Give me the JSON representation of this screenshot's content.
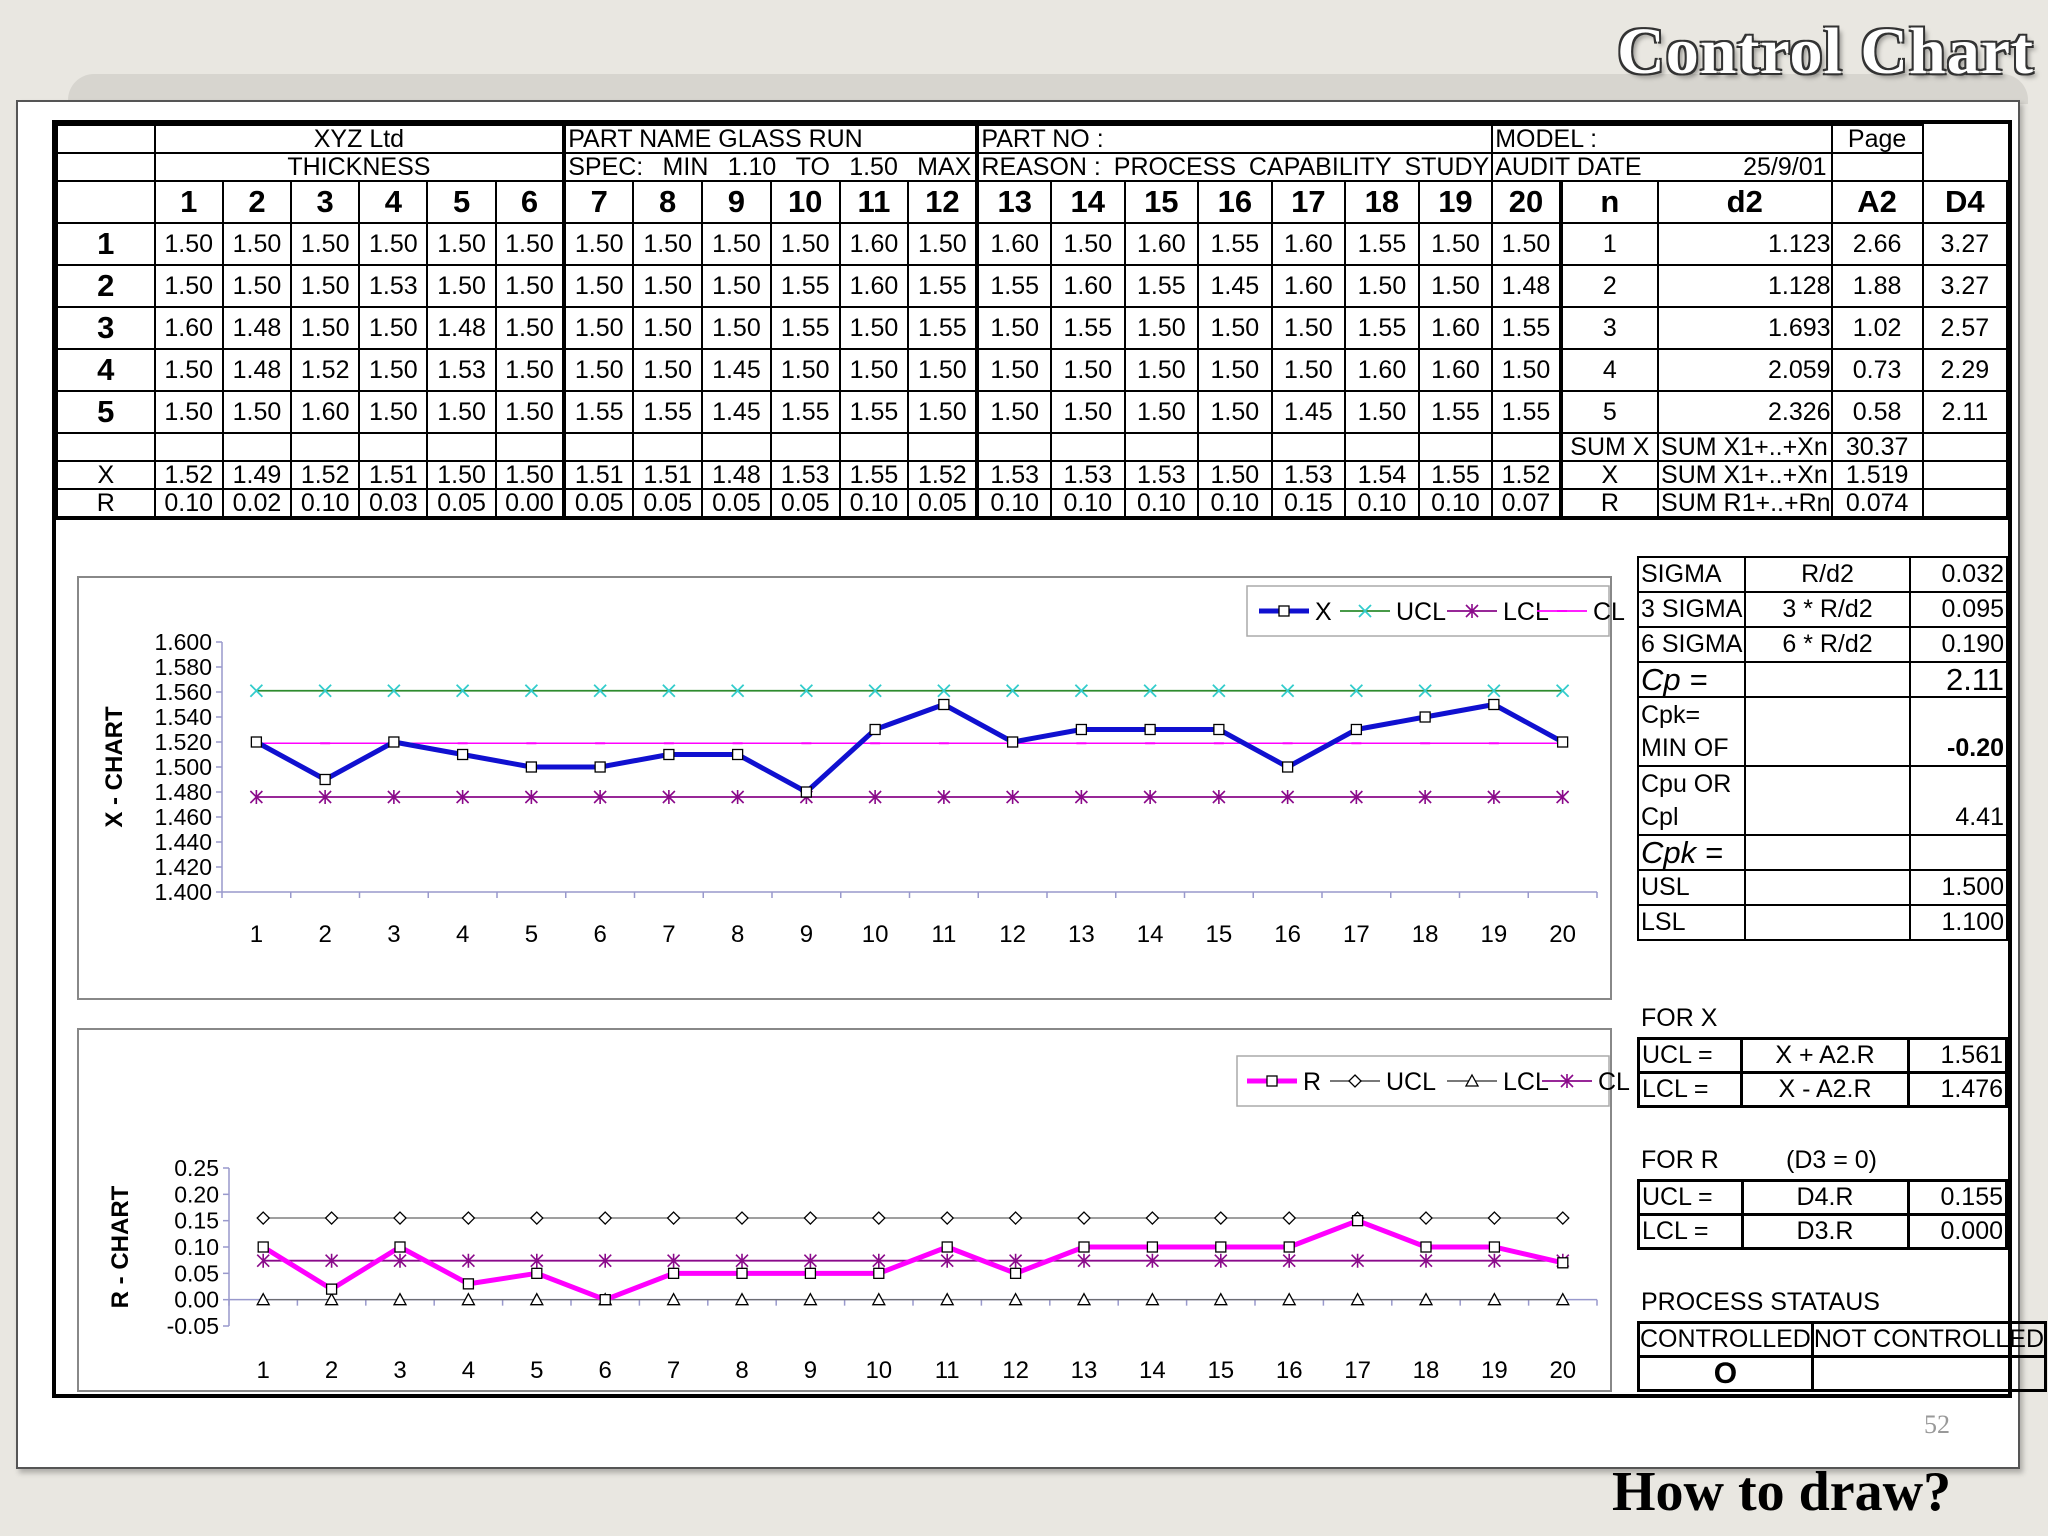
{
  "slide": {
    "title": "Control Chart",
    "footer": "How to draw?",
    "page_number": "52"
  },
  "header": {
    "company": "XYZ Ltd",
    "part_name_label": "PART NAME GLASS RUN",
    "part_no_label": "PART NO :",
    "model_label": "MODEL :",
    "page_label": "Page",
    "characteristic": "THICKNESS",
    "spec_label": "SPEC:",
    "min_label": "MIN",
    "min_value": "1.10",
    "to_label": "TO",
    "max_value": "1.50",
    "max_label": "MAX",
    "reason_label": "REASON :",
    "reason_words": [
      "PROCESS",
      "CAPABILITY",
      "STUDY"
    ],
    "audit_label": "AUDIT DATE",
    "audit_date": "25/9/01"
  },
  "table": {
    "columns": [
      "1",
      "2",
      "3",
      "4",
      "5",
      "6",
      "7",
      "8",
      "9",
      "10",
      "11",
      "12",
      "13",
      "14",
      "15",
      "16",
      "17",
      "18",
      "19",
      "20"
    ],
    "row_labels": [
      "1",
      "2",
      "3",
      "4",
      "5"
    ],
    "rows": [
      [
        "1.50",
        "1.50",
        "1.50",
        "1.50",
        "1.50",
        "1.50",
        "1.50",
        "1.50",
        "1.50",
        "1.50",
        "1.60",
        "1.50",
        "1.60",
        "1.50",
        "1.60",
        "1.55",
        "1.60",
        "1.55",
        "1.50",
        "1.50"
      ],
      [
        "1.50",
        "1.50",
        "1.50",
        "1.53",
        "1.50",
        "1.50",
        "1.50",
        "1.50",
        "1.50",
        "1.55",
        "1.60",
        "1.55",
        "1.55",
        "1.60",
        "1.55",
        "1.45",
        "1.60",
        "1.50",
        "1.50",
        "1.48"
      ],
      [
        "1.60",
        "1.48",
        "1.50",
        "1.50",
        "1.48",
        "1.50",
        "1.50",
        "1.50",
        "1.50",
        "1.55",
        "1.50",
        "1.55",
        "1.50",
        "1.55",
        "1.50",
        "1.50",
        "1.50",
        "1.55",
        "1.60",
        "1.55"
      ],
      [
        "1.50",
        "1.48",
        "1.52",
        "1.50",
        "1.53",
        "1.50",
        "1.50",
        "1.50",
        "1.45",
        "1.50",
        "1.50",
        "1.50",
        "1.50",
        "1.50",
        "1.50",
        "1.50",
        "1.50",
        "1.60",
        "1.60",
        "1.50"
      ],
      [
        "1.50",
        "1.50",
        "1.60",
        "1.50",
        "1.50",
        "1.50",
        "1.55",
        "1.55",
        "1.45",
        "1.55",
        "1.55",
        "1.50",
        "1.50",
        "1.50",
        "1.50",
        "1.50",
        "1.45",
        "1.50",
        "1.55",
        "1.55"
      ]
    ],
    "xbar_label": "X",
    "xbar": [
      "1.52",
      "1.49",
      "1.52",
      "1.51",
      "1.50",
      "1.50",
      "1.51",
      "1.51",
      "1.48",
      "1.53",
      "1.55",
      "1.52",
      "1.53",
      "1.53",
      "1.53",
      "1.50",
      "1.53",
      "1.54",
      "1.55",
      "1.52"
    ],
    "range_label": "R",
    "range": [
      "0.10",
      "0.02",
      "0.10",
      "0.03",
      "0.05",
      "0.00",
      "0.05",
      "0.05",
      "0.05",
      "0.05",
      "0.10",
      "0.05",
      "0.10",
      "0.10",
      "0.10",
      "0.10",
      "0.15",
      "0.10",
      "0.10",
      "0.07"
    ]
  },
  "constants": {
    "headers": [
      "n",
      "d2",
      "A2",
      "D4"
    ],
    "rows": [
      [
        "1",
        "1.123",
        "2.66",
        "3.27"
      ],
      [
        "2",
        "1.128",
        "1.88",
        "3.27"
      ],
      [
        "3",
        "1.693",
        "1.02",
        "2.57"
      ],
      [
        "4",
        "2.059",
        "0.73",
        "2.29"
      ],
      [
        "5",
        "2.326",
        "0.58",
        "2.11"
      ]
    ]
  },
  "calc": {
    "sum_x": {
      "label": "SUM X",
      "formula": "SUM X1+..+Xn",
      "value": "30.37"
    },
    "x_bar": {
      "label": "X",
      "formula": "SUM X1+..+Xn",
      "value": "1.519"
    },
    "r_bar": {
      "label": "R",
      "formula": "SUM R1+..+Rn",
      "value": "0.074"
    },
    "sigma": {
      "label": "SIGMA",
      "formula": "R/d2",
      "value": "0.032"
    },
    "sigma3": {
      "label": "3 SIGMA",
      "formula": "3 * R/d2",
      "value": "0.095"
    },
    "sigma6": {
      "label": "6 SIGMA",
      "formula": "6 * R/d2",
      "value": "0.190"
    },
    "cp": {
      "label": "Cp =",
      "value": "2.11"
    },
    "cpk_min": {
      "label_lines": [
        "Cpk=",
        "MIN OF"
      ],
      "value": "-0.20"
    },
    "cpu_cpl": {
      "label_lines": [
        "Cpu OR",
        "Cpl"
      ],
      "value": "4.41"
    },
    "cpk": {
      "label": "Cpk ="
    },
    "usl": {
      "label": "USL",
      "value": "1.500"
    },
    "lsl": {
      "label": "LSL",
      "value": "1.100"
    }
  },
  "limits_x": {
    "title": "FOR X",
    "ucl_label": "UCL =",
    "ucl_formula": "X + A2.R",
    "ucl_value": "1.561",
    "lcl_label": "LCL =",
    "lcl_formula": "X - A2.R",
    "lcl_value": "1.476"
  },
  "limits_r": {
    "title": "FOR R",
    "note": "(D3 = 0)",
    "ucl_label": "UCL =",
    "ucl_formula": "D4.R",
    "ucl_value": "0.155",
    "lcl_label": "LCL =",
    "lcl_formula": "D3.R",
    "lcl_value": "0.000"
  },
  "status": {
    "title": "PROCESS STATAUS",
    "controlled_label": "CONTROLLED",
    "not_controlled_label": "NOT CONTROLLED",
    "controlled_mark": "O",
    "not_controlled_mark": ""
  },
  "colors": {
    "x_series": "#1010d0",
    "ucl_x": "#2e8b2e",
    "lcl_x": "#8a0a8a",
    "cl_x": "#ff00ff",
    "r_series": "#ff00ff",
    "r_limits": "#666666",
    "cl_r": "#8a0a8a"
  },
  "chart_data": [
    {
      "type": "line",
      "ylabel": "X - CHART",
      "x": [
        1,
        2,
        3,
        4,
        5,
        6,
        7,
        8,
        9,
        10,
        11,
        12,
        13,
        14,
        15,
        16,
        17,
        18,
        19,
        20
      ],
      "ylim": [
        1.4,
        1.6
      ],
      "yticks": [
        "1.600",
        "1.580",
        "1.560",
        "1.540",
        "1.520",
        "1.500",
        "1.480",
        "1.460",
        "1.440",
        "1.420",
        "1.400"
      ],
      "legend_position": "top-right",
      "series": [
        {
          "name": "X",
          "values": [
            1.52,
            1.49,
            1.52,
            1.51,
            1.5,
            1.5,
            1.51,
            1.51,
            1.48,
            1.53,
            1.55,
            1.52,
            1.53,
            1.53,
            1.53,
            1.5,
            1.53,
            1.54,
            1.55,
            1.52
          ]
        },
        {
          "name": "UCL",
          "values": [
            1.561,
            1.561,
            1.561,
            1.561,
            1.561,
            1.561,
            1.561,
            1.561,
            1.561,
            1.561,
            1.561,
            1.561,
            1.561,
            1.561,
            1.561,
            1.561,
            1.561,
            1.561,
            1.561,
            1.561
          ]
        },
        {
          "name": "LCL",
          "values": [
            1.476,
            1.476,
            1.476,
            1.476,
            1.476,
            1.476,
            1.476,
            1.476,
            1.476,
            1.476,
            1.476,
            1.476,
            1.476,
            1.476,
            1.476,
            1.476,
            1.476,
            1.476,
            1.476,
            1.476
          ]
        },
        {
          "name": "CL",
          "values": [
            1.519,
            1.519,
            1.519,
            1.519,
            1.519,
            1.519,
            1.519,
            1.519,
            1.519,
            1.519,
            1.519,
            1.519,
            1.519,
            1.519,
            1.519,
            1.519,
            1.519,
            1.519,
            1.519,
            1.519
          ]
        }
      ]
    },
    {
      "type": "line",
      "ylabel": "R - CHART",
      "x": [
        1,
        2,
        3,
        4,
        5,
        6,
        7,
        8,
        9,
        10,
        11,
        12,
        13,
        14,
        15,
        16,
        17,
        18,
        19,
        20
      ],
      "ylim": [
        -0.05,
        0.25
      ],
      "yticks": [
        "0.25",
        "0.20",
        "0.15",
        "0.10",
        "0.05",
        "0.00",
        "-0.05"
      ],
      "legend_position": "top-right",
      "series": [
        {
          "name": "R",
          "values": [
            0.1,
            0.02,
            0.1,
            0.03,
            0.05,
            0.0,
            0.05,
            0.05,
            0.05,
            0.05,
            0.1,
            0.05,
            0.1,
            0.1,
            0.1,
            0.1,
            0.15,
            0.1,
            0.1,
            0.07
          ]
        },
        {
          "name": "UCL",
          "values": [
            0.155,
            0.155,
            0.155,
            0.155,
            0.155,
            0.155,
            0.155,
            0.155,
            0.155,
            0.155,
            0.155,
            0.155,
            0.155,
            0.155,
            0.155,
            0.155,
            0.155,
            0.155,
            0.155,
            0.155
          ]
        },
        {
          "name": "LCL",
          "values": [
            0,
            0,
            0,
            0,
            0,
            0,
            0,
            0,
            0,
            0,
            0,
            0,
            0,
            0,
            0,
            0,
            0,
            0,
            0,
            0
          ]
        },
        {
          "name": "CL",
          "values": [
            0.074,
            0.074,
            0.074,
            0.074,
            0.074,
            0.074,
            0.074,
            0.074,
            0.074,
            0.074,
            0.074,
            0.074,
            0.074,
            0.074,
            0.074,
            0.074,
            0.074,
            0.074,
            0.074,
            0.074
          ]
        }
      ]
    }
  ]
}
